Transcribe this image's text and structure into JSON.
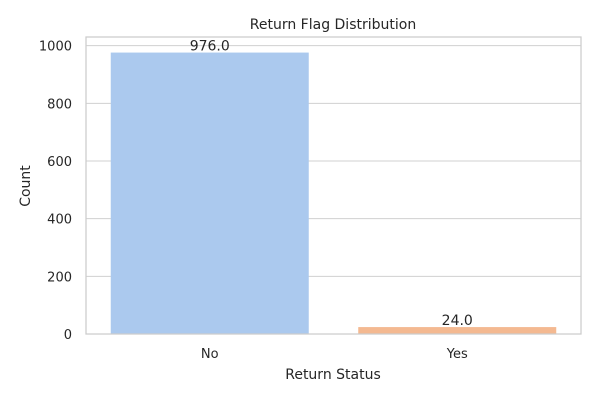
{
  "chart_data": {
    "type": "bar",
    "title": "Return Flag Distribution",
    "xlabel": "Return Status",
    "ylabel": "Count",
    "categories": [
      "No",
      "Yes"
    ],
    "values": [
      976,
      24
    ],
    "data_labels": [
      "976.0",
      "24.0"
    ],
    "ylim": [
      0,
      1030
    ],
    "yticks": [
      0,
      200,
      400,
      600,
      800,
      1000
    ],
    "ytick_labels": [
      "0",
      "200",
      "400",
      "600",
      "800",
      "1000"
    ],
    "grid": "horizontal",
    "bar_colors": [
      "#abc9ee",
      "#f4b991"
    ]
  }
}
